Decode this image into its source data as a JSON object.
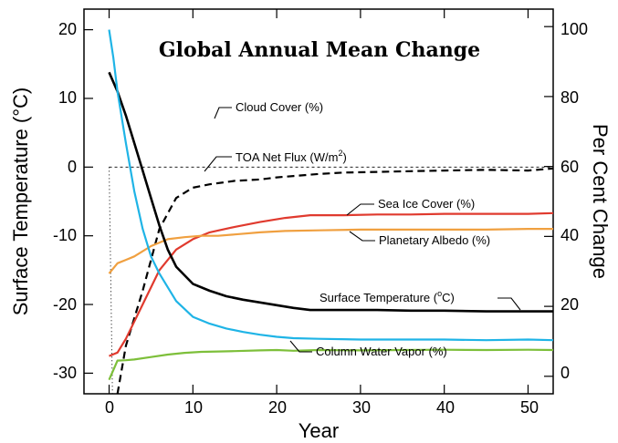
{
  "chart_data": {
    "type": "line",
    "title": "Global Annual Mean Change",
    "xlabel": "Year",
    "ylabel_left": "Surface Temperature (°C)",
    "ylabel_right": "Per Cent Change",
    "xlim": [
      -3,
      53
    ],
    "ylim_left": [
      -33,
      23
    ],
    "ylim_right": [
      -5,
      105
    ],
    "x_ticks": [
      "0",
      "10",
      "20",
      "30",
      "40",
      "50"
    ],
    "y_left_ticks": [
      "20",
      "10",
      "0",
      "-10",
      "-20",
      "-30"
    ],
    "y_right_ticks": [
      "100",
      "80",
      "60",
      "40",
      "20",
      "0"
    ],
    "series": [
      {
        "name": "Cloud Cover (%)",
        "axis": "right",
        "color": "#7dbf3a",
        "style": "solid",
        "x": [
          0,
          1,
          2,
          3,
          5,
          7,
          9,
          11,
          13,
          15,
          18,
          20,
          22,
          25,
          30,
          35,
          40,
          45,
          50,
          53
        ],
        "y": [
          -1,
          4.5,
          4.6,
          4.8,
          5.5,
          6.2,
          6.7,
          7,
          7.1,
          7.2,
          7.4,
          7.5,
          7.3,
          7.5,
          7.4,
          7.5,
          7.6,
          7.5,
          7.6,
          7.5
        ]
      },
      {
        "name": "TOA Net Flux (W/m²)",
        "axis": "left",
        "color": "#000000",
        "style": "dashed",
        "x": [
          1,
          2,
          4,
          6,
          8,
          10,
          12,
          15,
          18,
          20,
          22,
          25,
          28,
          32,
          36,
          40,
          45,
          50,
          53
        ],
        "y": [
          -33,
          -26,
          -18,
          -9,
          -4.5,
          -3,
          -2.5,
          -2,
          -1.8,
          -1.5,
          -1.3,
          -1,
          -0.8,
          -0.7,
          -0.6,
          -0.5,
          -0.4,
          -0.5,
          -0.2
        ]
      },
      {
        "name": "Sea Ice Cover (%)",
        "axis": "left",
        "color": "#e03a2e",
        "style": "solid",
        "x": [
          0,
          1,
          2,
          4,
          6,
          8,
          10,
          12,
          15,
          18,
          21,
          24,
          28,
          32,
          36,
          40,
          45,
          50,
          53
        ],
        "y": [
          -27.5,
          -27,
          -25,
          -20,
          -15,
          -12,
          -10.5,
          -9.5,
          -8.7,
          -8,
          -7.4,
          -7,
          -7,
          -6.9,
          -6.9,
          -6.8,
          -6.8,
          -6.8,
          -6.7
        ]
      },
      {
        "name": "Planetary Albedo (%)",
        "axis": "left",
        "color": "#f0a040",
        "style": "solid",
        "x": [
          0,
          1,
          2,
          3,
          5,
          7,
          9,
          11,
          13,
          15,
          18,
          21,
          25,
          30,
          35,
          40,
          45,
          50,
          53
        ],
        "y": [
          -15.5,
          -14,
          -13.5,
          -13,
          -11.5,
          -10.5,
          -10.2,
          -10,
          -10,
          -9.8,
          -9.5,
          -9.3,
          -9.2,
          -9.1,
          -9.1,
          -9.1,
          -9.1,
          -9,
          -9
        ]
      },
      {
        "name": "Surface Temperature (°C)",
        "axis": "left",
        "color": "#000000",
        "style": "solid",
        "x": [
          0,
          1,
          2,
          3,
          4,
          5,
          6,
          7,
          8,
          10,
          12,
          14,
          16,
          18,
          20,
          22,
          24,
          28,
          32,
          36,
          40,
          45,
          50,
          53
        ],
        "y": [
          13.8,
          11,
          7.5,
          3.5,
          -0.5,
          -4.5,
          -8.5,
          -12,
          -14.5,
          -17,
          -18,
          -18.8,
          -19.3,
          -19.7,
          -20.1,
          -20.5,
          -20.8,
          -20.8,
          -20.8,
          -20.9,
          -20.9,
          -21,
          -21,
          -21
        ]
      },
      {
        "name": "Column Water Vapor (%)",
        "axis": "left",
        "color": "#1fb4e6",
        "style": "solid",
        "x": [
          0,
          0.5,
          1,
          2,
          3,
          4,
          5,
          6,
          7,
          8,
          10,
          12,
          14,
          16,
          18,
          20,
          22,
          25,
          30,
          35,
          40,
          45,
          50,
          53
        ],
        "y": [
          20,
          16,
          11,
          3.5,
          -3.5,
          -9,
          -13,
          -15.5,
          -17.5,
          -19.5,
          -21.8,
          -22.8,
          -23.5,
          -24,
          -24.4,
          -24.7,
          -24.9,
          -25,
          -25.1,
          -25.1,
          -25.1,
          -25.2,
          -25.1,
          -25.2
        ]
      }
    ],
    "annotations": [
      "Cloud Cover (%)",
      "TOA Net Flux (W/m",
      "2",
      ")",
      "Sea Ice Cover (%)",
      "Planetary Albedo (%)",
      "Surface Temperature (",
      "o",
      "C)",
      "Column Water Vapor (%)"
    ],
    "reference_line": {
      "y": 0,
      "style": "dashed"
    },
    "grid": false,
    "legend": "none"
  }
}
